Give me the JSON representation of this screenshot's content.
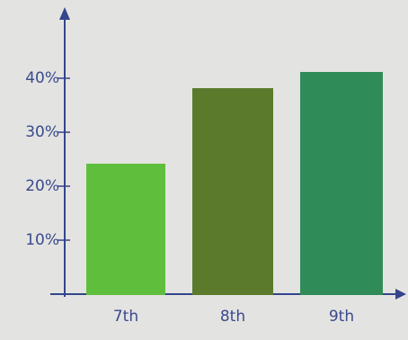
{
  "chart_data": {
    "type": "bar",
    "categories": [
      "7th",
      "8th",
      "9th"
    ],
    "values": [
      24,
      38,
      41
    ],
    "colors": [
      "#5fbf3c",
      "#5b7a2c",
      "#2f8c58"
    ],
    "ylim": [
      0,
      52
    ],
    "yticks": [
      {
        "value": 10,
        "label": "10%"
      },
      {
        "value": 20,
        "label": "20%"
      },
      {
        "value": 30,
        "label": "30%"
      },
      {
        "value": 40,
        "label": "40%"
      }
    ],
    "grid": false
  }
}
